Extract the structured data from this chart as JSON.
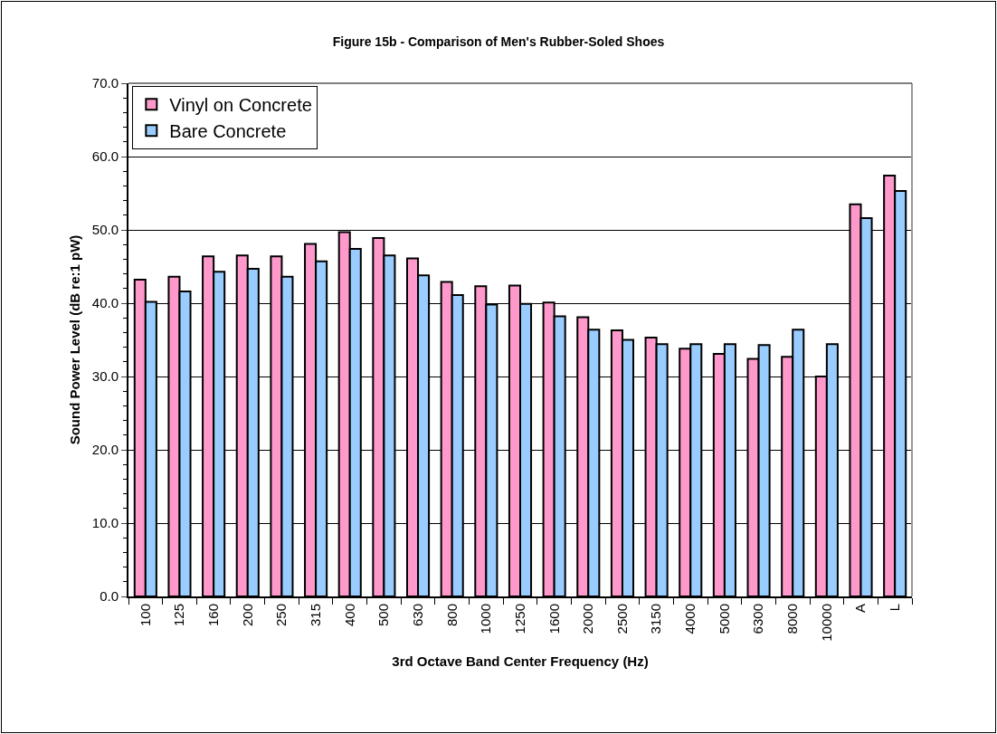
{
  "chart_data": {
    "type": "bar",
    "title": "Figure 15b - Comparison of Men's Rubber-Soled Shoes",
    "xlabel": "3rd Octave Band Center Frequency (Hz)",
    "ylabel": "Sound Power Level (dB re:1 pW)",
    "categories": [
      "100",
      "125",
      "160",
      "200",
      "250",
      "315",
      "400",
      "500",
      "630",
      "800",
      "1000",
      "1250",
      "1600",
      "2000",
      "2500",
      "3150",
      "4000",
      "5000",
      "6300",
      "8000",
      "10000",
      "A",
      "L"
    ],
    "series": [
      {
        "name": "Vinyl on Concrete",
        "color": "#ff99cc",
        "values": [
          43.2,
          43.6,
          46.4,
          46.5,
          46.4,
          48.1,
          49.7,
          48.9,
          46.1,
          42.9,
          42.3,
          42.4,
          40.1,
          38.1,
          36.3,
          35.3,
          33.8,
          33.1,
          32.4,
          32.7,
          30.0,
          53.5,
          57.4
        ]
      },
      {
        "name": "Bare Concrete",
        "color": "#99ccff",
        "values": [
          40.2,
          41.6,
          44.3,
          44.7,
          43.6,
          45.7,
          47.4,
          46.5,
          43.8,
          41.1,
          39.8,
          39.9,
          38.2,
          36.4,
          35.0,
          34.4,
          34.4,
          34.4,
          34.3,
          36.4,
          34.4,
          51.6,
          55.3
        ]
      }
    ],
    "ylim": [
      0,
      70
    ],
    "yticks": [
      {
        "value": 0,
        "label": "0.0"
      },
      {
        "value": 10,
        "label": "10.0"
      },
      {
        "value": 20,
        "label": "20.0"
      },
      {
        "value": 30,
        "label": "30.0"
      },
      {
        "value": 40,
        "label": "40.0"
      },
      {
        "value": 50,
        "label": "50.0"
      },
      {
        "value": 60,
        "label": "60.0"
      },
      {
        "value": 70,
        "label": "70.0"
      }
    ],
    "grid": "y",
    "legend": "top left"
  }
}
